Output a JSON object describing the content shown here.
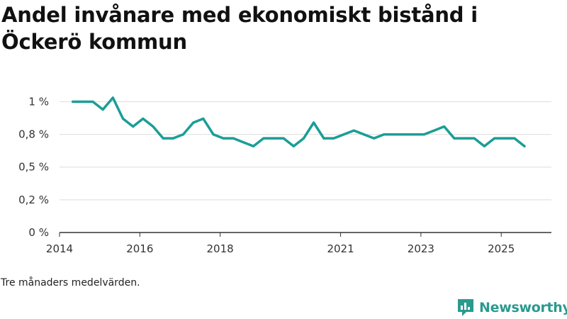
{
  "title": "Andel invånare med ekonomiskt bistånd i Öckerö kommun",
  "note": "Tre månaders medelvärden.",
  "brand": {
    "name": "Newsworthy",
    "icon": "newsworthy-logo-icon",
    "color": "#2a9a8f"
  },
  "colors": {
    "line": "#1a9e96",
    "grid": "#dddddd",
    "axis": "#333333"
  },
  "chart_data": {
    "type": "line",
    "title": "Andel invånare med ekonomiskt bistånd i Öckerö kommun",
    "xlabel": "",
    "ylabel": "",
    "ylim": [
      0,
      1.1
    ],
    "xlim": [
      2014,
      2026.25
    ],
    "y_ticks": [
      {
        "value": 0,
        "label": "0 %"
      },
      {
        "value": 0.25,
        "label": "0,2 %"
      },
      {
        "value": 0.5,
        "label": "0,5 %"
      },
      {
        "value": 0.75,
        "label": "0,8 %"
      },
      {
        "value": 1.0,
        "label": "1 %"
      }
    ],
    "x_ticks": [
      {
        "value": 2014,
        "label": "2014"
      },
      {
        "value": 2016,
        "label": "2016"
      },
      {
        "value": 2018,
        "label": "2018"
      },
      {
        "value": 2021,
        "label": "2021"
      },
      {
        "value": 2023,
        "label": "2023"
      },
      {
        "value": 2025,
        "label": "2025"
      }
    ],
    "series": [
      {
        "name": "Andel invånare med ekonomiskt bistånd",
        "x": [
          2014.33,
          2014.58,
          2014.83,
          2015.08,
          2015.33,
          2015.58,
          2015.83,
          2016.08,
          2016.33,
          2016.58,
          2016.83,
          2017.08,
          2017.33,
          2017.58,
          2017.83,
          2018.08,
          2018.33,
          2018.58,
          2018.83,
          2019.08,
          2019.33,
          2019.58,
          2019.83,
          2020.08,
          2020.33,
          2020.58,
          2020.83,
          2021.08,
          2021.33,
          2021.58,
          2021.83,
          2022.08,
          2022.33,
          2022.58,
          2022.83,
          2023.08,
          2023.33,
          2023.58,
          2023.83,
          2024.08,
          2024.33,
          2024.58,
          2024.83,
          2025.08,
          2025.33,
          2025.58
        ],
        "values": [
          1.0,
          1.0,
          1.0,
          0.94,
          1.03,
          0.87,
          0.81,
          0.87,
          0.81,
          0.72,
          0.72,
          0.75,
          0.84,
          0.87,
          0.75,
          0.72,
          0.72,
          0.69,
          0.66,
          0.72,
          0.72,
          0.72,
          0.66,
          0.72,
          0.84,
          0.72,
          0.72,
          0.75,
          0.78,
          0.75,
          0.72,
          0.75,
          0.75,
          0.75,
          0.75,
          0.75,
          0.78,
          0.81,
          0.72,
          0.72,
          0.72,
          0.66,
          0.72,
          0.72,
          0.72,
          0.66
        ]
      }
    ]
  }
}
